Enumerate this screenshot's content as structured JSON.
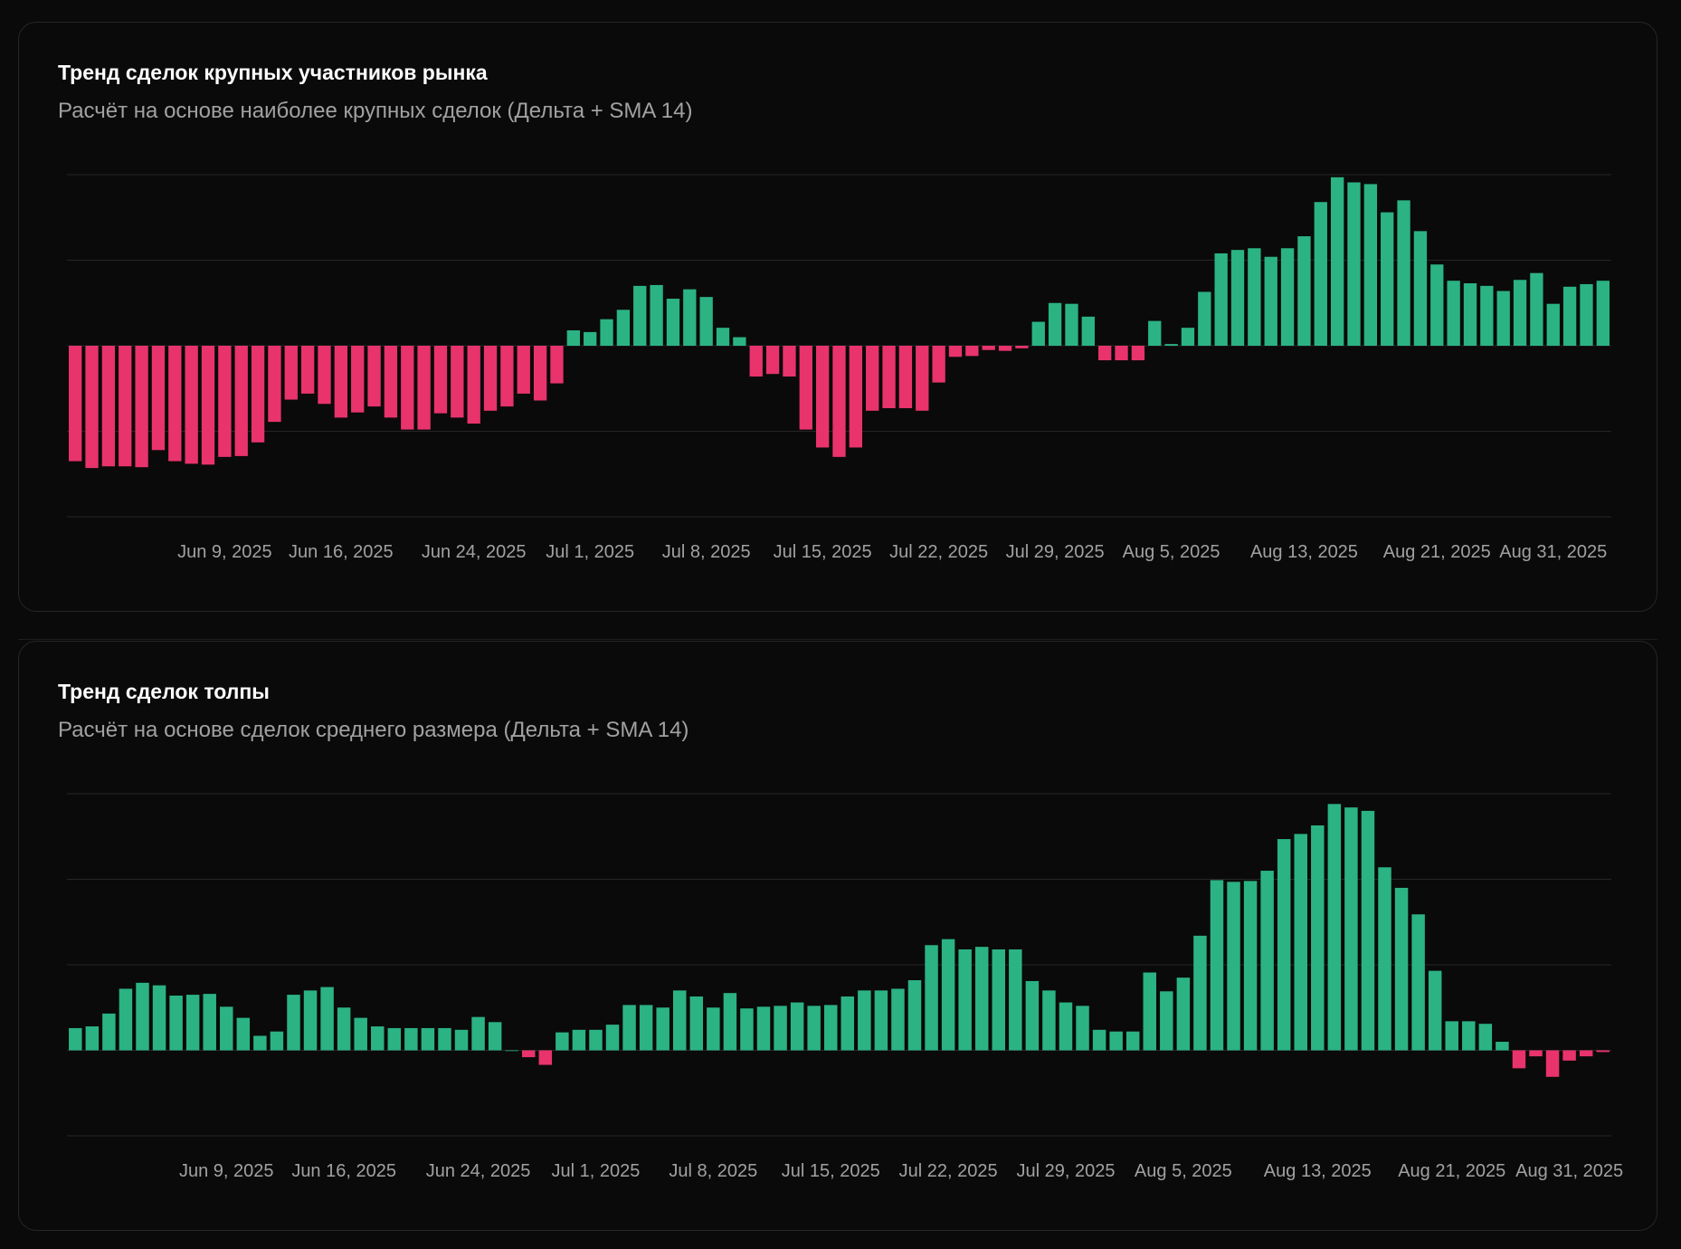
{
  "colors": {
    "positive": "#2bb384",
    "negative": "#e8336d",
    "grid": "#262626",
    "tick": "#a1a1a1"
  },
  "charts": [
    {
      "title": "Тренд сделок крупных участников рынка",
      "subtitle": "Расчёт на основе наиболее крупных сделок (Дельта + SMA 14)"
    },
    {
      "title": "Тренд сделок толпы",
      "subtitle": "Расчёт на основе сделок среднего размера (Дельта + SMA 14)"
    }
  ],
  "chart_data": [
    {
      "type": "bar",
      "title": "Тренд сделок крупных участников рынка",
      "subtitle": "Расчёт на основе наиболее крупных сделок (Дельта + SMA 14)",
      "x_tick_labels": [
        "Jun 9, 2025",
        "Jun 16, 2025",
        "Jun 24, 2025",
        "Jul 1, 2025",
        "Jul 8, 2025",
        "Jul 15, 2025",
        "Jul 22, 2025",
        "Jul 29, 2025",
        "Aug 5, 2025",
        "Aug 13, 2025",
        "Aug 21, 2025",
        "Aug 31, 2025"
      ],
      "x_tick_bar_index": [
        9,
        16,
        24,
        31,
        38,
        45,
        52,
        59,
        66,
        74,
        82,
        89
      ],
      "ylim": [
        -2,
        2
      ],
      "grid": true,
      "values": [
        -1.35,
        -1.43,
        -1.41,
        -1.41,
        -1.42,
        -1.22,
        -1.35,
        -1.38,
        -1.39,
        -1.3,
        -1.29,
        -1.13,
        -0.89,
        -0.63,
        -0.56,
        -0.68,
        -0.84,
        -0.78,
        -0.71,
        -0.84,
        -0.98,
        -0.98,
        -0.79,
        -0.84,
        -0.91,
        -0.76,
        -0.71,
        -0.56,
        -0.64,
        -0.44,
        0.18,
        0.16,
        0.31,
        0.42,
        0.7,
        0.71,
        0.55,
        0.66,
        0.57,
        0.21,
        0.1,
        -0.36,
        -0.33,
        -0.36,
        -0.98,
        -1.19,
        -1.3,
        -1.19,
        -0.76,
        -0.73,
        -0.73,
        -0.76,
        -0.43,
        -0.13,
        -0.12,
        -0.05,
        -0.06,
        -0.03,
        0.28,
        0.5,
        0.49,
        0.34,
        -0.17,
        -0.17,
        -0.17,
        0.29,
        0.02,
        0.21,
        0.63,
        1.08,
        1.12,
        1.14,
        1.04,
        1.14,
        1.28,
        1.68,
        1.97,
        1.91,
        1.89,
        1.56,
        1.7,
        1.34,
        0.95,
        0.76,
        0.73,
        0.7,
        0.64,
        0.77,
        0.85,
        0.49,
        0.69,
        0.72,
        0.76
      ]
    },
    {
      "type": "bar",
      "title": "Тренд сделок толпы",
      "subtitle": "Расчёт на основе сделок среднего размера (Дельта + SMA 14)",
      "x_tick_labels": [
        "Jun 9, 2025",
        "Jun 16, 2025",
        "Jun 24, 2025",
        "Jul 1, 2025",
        "Jul 8, 2025",
        "Jul 15, 2025",
        "Jul 22, 2025",
        "Jul 29, 2025",
        "Aug 5, 2025",
        "Aug 13, 2025",
        "Aug 21, 2025",
        "Aug 31, 2025"
      ],
      "x_tick_bar_index": [
        9,
        16,
        24,
        31,
        38,
        45,
        52,
        59,
        66,
        74,
        82,
        89
      ],
      "ylim": [
        -1,
        3
      ],
      "grid": true,
      "values": [
        0.26,
        0.28,
        0.43,
        0.72,
        0.79,
        0.76,
        0.64,
        0.65,
        0.66,
        0.51,
        0.38,
        0.17,
        0.22,
        0.65,
        0.7,
        0.74,
        0.5,
        0.38,
        0.28,
        0.26,
        0.26,
        0.26,
        0.26,
        0.24,
        0.39,
        0.33,
        0.0,
        -0.08,
        -0.17,
        0.21,
        0.24,
        0.24,
        0.3,
        0.53,
        0.53,
        0.5,
        0.7,
        0.63,
        0.5,
        0.67,
        0.49,
        0.51,
        0.52,
        0.56,
        0.52,
        0.53,
        0.63,
        0.7,
        0.7,
        0.72,
        0.82,
        1.23,
        1.3,
        1.18,
        1.21,
        1.18,
        1.18,
        0.81,
        0.7,
        0.56,
        0.52,
        0.24,
        0.22,
        0.22,
        0.91,
        0.69,
        0.85,
        1.34,
        1.99,
        1.97,
        1.98,
        2.1,
        2.47,
        2.53,
        2.63,
        2.88,
        2.84,
        2.8,
        2.14,
        1.9,
        1.59,
        0.93,
        0.34,
        0.34,
        0.31,
        0.1,
        -0.21,
        -0.07,
        -0.31,
        -0.12,
        -0.07,
        -0.02
      ]
    }
  ]
}
